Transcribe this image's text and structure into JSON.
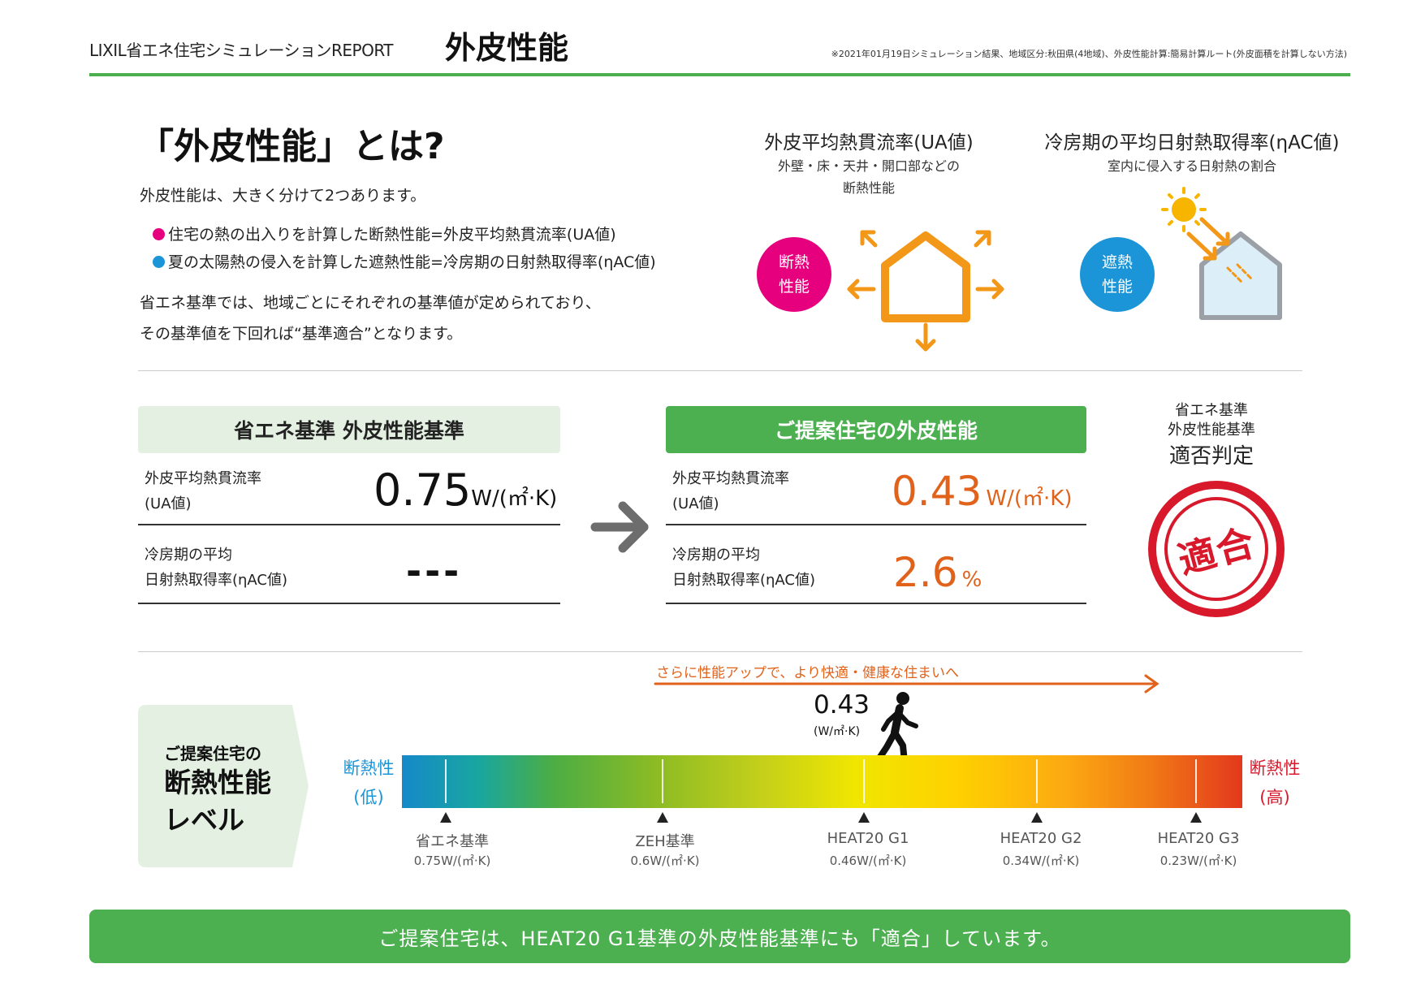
{
  "header": {
    "brand": "LIXIL省エネ住宅シミュレーションREPORT",
    "title": "外皮性能",
    "note": "※2021年01月19日シミュレーション結果、地域区分:秋田県(4地域)、外皮性能計算:簡易計算ルート(外皮面積を計算しない方法)"
  },
  "intro": {
    "heading": "「外皮性能」とは?",
    "lead": "外皮性能は、大きく分けて2つあります。",
    "bullets": [
      {
        "text": "住宅の熱の出入りを計算した断熱性能=外皮平均熱貫流率(UA値)",
        "color": "#e6007e"
      },
      {
        "text": "夏の太陽熱の侵入を計算した遮熱性能=冷房期の日射熱取得率(ηAC値)",
        "color": "#1b95d8"
      }
    ],
    "para_line1": "省エネ基準では、地域ごとにそれぞれの基準値が定められており、",
    "para_line2": "その基準値を下回れば“基準適合”となります。"
  },
  "diagram_ua": {
    "title": "外皮平均熱貫流率(UA値)",
    "sub_line1": "外壁・床・天井・開口部などの",
    "sub_line2": "断熱性能",
    "badge_line1": "断熱",
    "badge_line2": "性能",
    "badge_color": "#e6007e",
    "icon": "house-heat-loss-icon"
  },
  "diagram_eta": {
    "title": "冷房期の平均日射熱取得率(ηAC値)",
    "sub": "室内に侵入する日射熱の割合",
    "badge_line1": "遮熱",
    "badge_line2": "性能",
    "badge_color": "#1b95d8",
    "icon": "house-solar-gain-icon"
  },
  "standard": {
    "header": "省エネ基準 外皮性能基準",
    "ua_label_line1": "外皮平均熱貫流率",
    "ua_label_line2": "(UA値)",
    "ua_value": "0.75",
    "ua_unit": "W/(㎡·K)",
    "eta_label_line1": "冷房期の平均",
    "eta_label_line2": "日射熱取得率(ηAC値)",
    "eta_value": "---"
  },
  "proposal": {
    "header": "ご提案住宅の外皮性能",
    "ua_label_line1": "外皮平均熱貫流率",
    "ua_label_line2": "(UA値)",
    "ua_value": "0.43",
    "ua_unit": "W/(㎡·K)",
    "eta_label_line1": "冷房期の平均",
    "eta_label_line2": "日射熱取得率(ηAC値)",
    "eta_value": "2.6",
    "eta_unit": "%"
  },
  "judgement": {
    "line1": "省エネ基準",
    "line2": "外皮性能基準",
    "line3": "適否判定",
    "stamp": "適合",
    "stamp_color": "#d7192b"
  },
  "level": {
    "panel_line1": "ご提案住宅の",
    "panel_line2": "断熱性能",
    "panel_line3": "レベル",
    "arrow_text": "さらに性能アップで、より快適・健康な住まいへ",
    "current_value": "0.43",
    "current_unit": "(W/㎡·K)",
    "low_line1": "断熱性",
    "low_line2": "(低)",
    "high_line1": "断熱性",
    "high_line2": "(高)",
    "ticks": [
      {
        "name": "省エネ基準",
        "value": "0.75W/(㎡·K)"
      },
      {
        "name": "ZEH基準",
        "value": "0.6W/(㎡·K)"
      },
      {
        "name": "HEAT20 G1",
        "value": "0.46W/(㎡·K)"
      },
      {
        "name": "HEAT20 G2",
        "value": "0.34W/(㎡·K)"
      },
      {
        "name": "HEAT20 G3",
        "value": "0.23W/(㎡·K)"
      }
    ]
  },
  "footer": {
    "text": "ご提案住宅は、HEAT20 G1基準の外皮性能基準にも「適合」しています。"
  },
  "colors": {
    "accent_green": "#4caf50",
    "light_green": "#e4f1e2",
    "orange": "#e0621b"
  }
}
